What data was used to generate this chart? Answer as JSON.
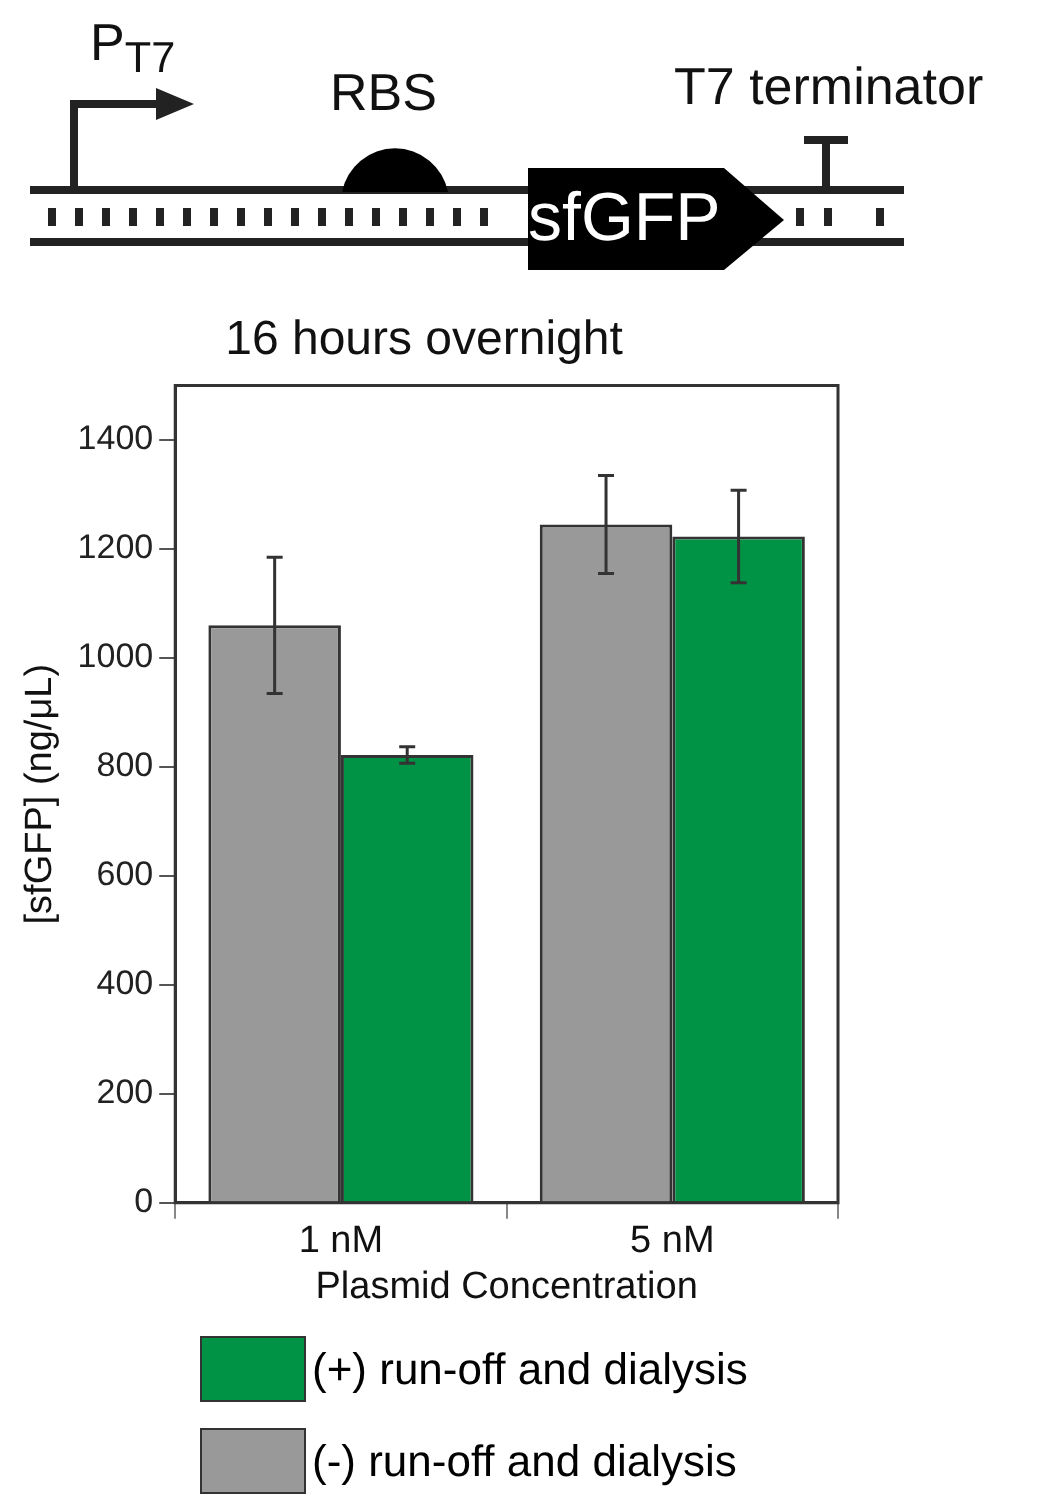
{
  "chart_data": {
    "type": "bar",
    "title": "16 hours overnight",
    "xlabel": "Plasmid Concentration",
    "ylabel": "[sfGFP] (ng/μL)",
    "categories": [
      "1 nM",
      "5 nM"
    ],
    "series": [
      {
        "name": "(-) run-off and dialysis",
        "color": "#999999",
        "values": [
          1060,
          1245
        ],
        "errors": [
          125,
          90
        ]
      },
      {
        "name": "(+) run-off and dialysis",
        "color": "#009245",
        "values": [
          822,
          1223
        ],
        "errors": [
          15,
          85
        ]
      }
    ],
    "ylim": [
      0,
      1500
    ],
    "yticks": [
      0,
      200,
      400,
      600,
      800,
      1000,
      1200,
      1400
    ],
    "grid": false,
    "legend": "bottom",
    "annotations": [
      "P$_{T7}$",
      "RBS",
      "sfGFP",
      "T7 terminator"
    ]
  }
}
